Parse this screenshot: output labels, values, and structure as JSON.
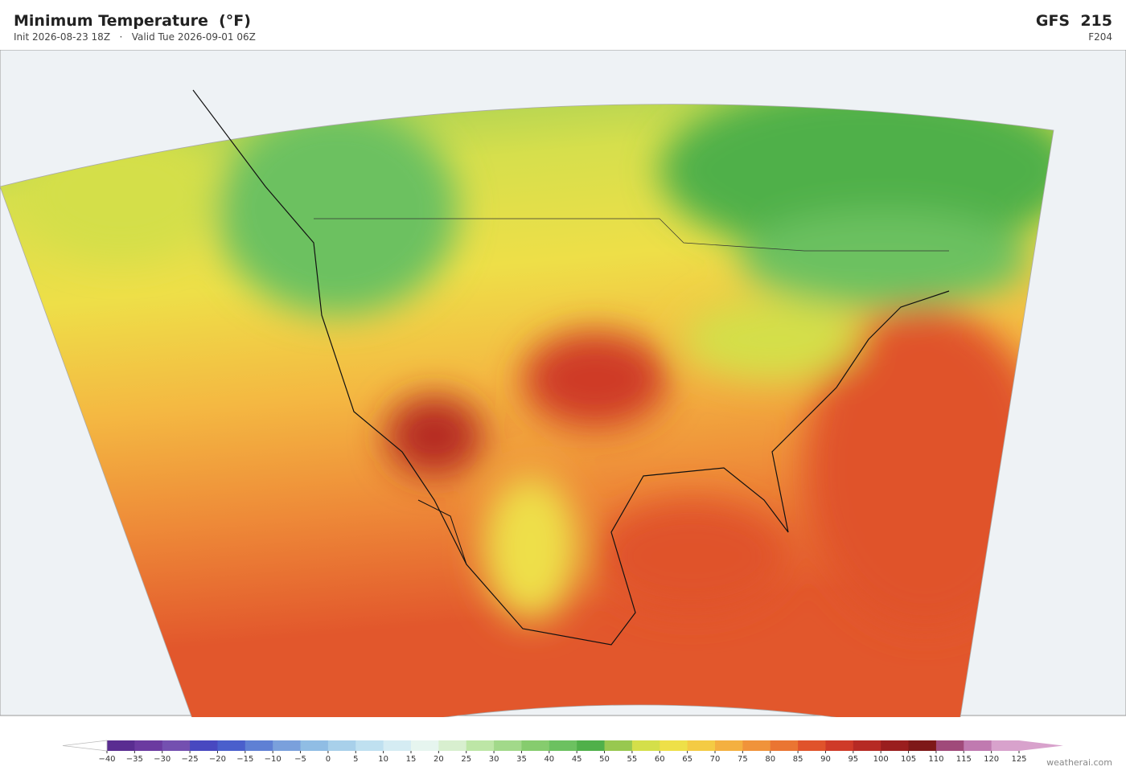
{
  "header": {
    "title": "Minimum Temperature  (°F)",
    "init": "Init 2026-08-23 18Z",
    "separator": "·",
    "valid": "Valid Tue 2026-09-01 06Z",
    "model": "GFS  215",
    "forecast_hour": "F204"
  },
  "colorbar": {
    "ticks": [
      {
        "value": -40,
        "label": "−40"
      },
      {
        "value": -35,
        "label": "−35"
      },
      {
        "value": -30,
        "label": "−30"
      },
      {
        "value": -25,
        "label": "−25"
      },
      {
        "value": -20,
        "label": "−20"
      },
      {
        "value": -15,
        "label": "−15"
      },
      {
        "value": -10,
        "label": "−10"
      },
      {
        "value": -5,
        "label": "−5"
      },
      0,
      5,
      10,
      15,
      20,
      25,
      30,
      35,
      40,
      45,
      50,
      55,
      60,
      65,
      70,
      75,
      80,
      85,
      90,
      95,
      100,
      105,
      110,
      115,
      120,
      125
    ],
    "colors": [
      "#5a2d91",
      "#6b3aa0",
      "#7450b0",
      "#4848c0",
      "#4a5fcc",
      "#5f80d4",
      "#7aa0dc",
      "#90bde4",
      "#a8d0ea",
      "#bfe0f0",
      "#d5ecf3",
      "#e6f5ef",
      "#d8efcf",
      "#bde6a6",
      "#a2d98a",
      "#86cc6e",
      "#6cc160",
      "#50b04a",
      "#98c850",
      "#d4df4a",
      "#eee048",
      "#f4cb44",
      "#f4b040",
      "#f0933a",
      "#ea7532",
      "#e0532b",
      "#cf3a28",
      "#b62a24",
      "#9a1e1e",
      "#7e1818",
      "#a04a7a",
      "#c07ab0",
      "#d8a2cc"
    ]
  },
  "footer": {
    "credit": "weatherai.com"
  }
}
